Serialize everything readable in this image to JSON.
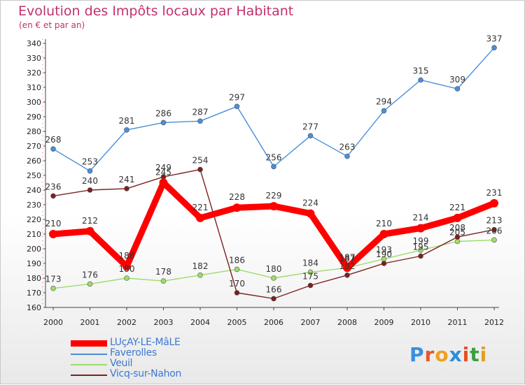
{
  "title": "Evolution des Impôts locaux par Habitant",
  "subtitle": "(en € et par an)",
  "logo": {
    "text": "Proxiti",
    "letter_colors": [
      "#3a8ee0",
      "#e8562a",
      "#f0a020",
      "#2a8ed8",
      "#e85020",
      "#3aa040",
      "#e0a020"
    ]
  },
  "chart_data": {
    "type": "line",
    "title": "Evolution des Impôts locaux par Habitant",
    "subtitle": "(en € et par an)",
    "xlabel": "",
    "ylabel": "",
    "categories": [
      "2000",
      "2001",
      "2002",
      "2003",
      "2004",
      "2005",
      "2006",
      "2007",
      "2008",
      "2009",
      "2010",
      "2011",
      "2012"
    ],
    "ylim": [
      160,
      340
    ],
    "yticks": [
      160,
      170,
      180,
      190,
      200,
      210,
      220,
      230,
      240,
      250,
      260,
      270,
      280,
      290,
      300,
      310,
      320,
      330,
      340
    ],
    "grid": false,
    "legend_position": "bottom-left",
    "series": [
      {
        "name": "Faverolles",
        "color": "#4a8ed8",
        "values": [
          268,
          253,
          281,
          286,
          287,
          297,
          256,
          277,
          263,
          294,
          315,
          309,
          337
        ]
      },
      {
        "name": "Veuil",
        "color": "#9ddc6a",
        "values": [
          173,
          176,
          180,
          178,
          182,
          186,
          180,
          184,
          187,
          193,
          199,
          205,
          206
        ]
      },
      {
        "name": "Vicq-sur-Nahon",
        "color": "#7b2020",
        "values": [
          236,
          240,
          241,
          249,
          254,
          170,
          166,
          175,
          182,
          190,
          195,
          208,
          213
        ]
      },
      {
        "name": "LUçAY-LE-MâLE",
        "color": "#ff0000",
        "values": [
          210,
          212,
          188,
          245,
          221,
          228,
          229,
          224,
          187,
          210,
          214,
          221,
          231
        ]
      }
    ]
  },
  "legend": [
    {
      "label": "LUçAY-LE-MâLE",
      "color": "#ff0000",
      "stroke": 9
    },
    {
      "label": "Faverolles",
      "color": "#4a8ed8",
      "stroke": 2
    },
    {
      "label": "Veuil",
      "color": "#9ddc6a",
      "stroke": 2
    },
    {
      "label": "Vicq-sur-Nahon",
      "color": "#7b2020",
      "stroke": 2
    }
  ]
}
